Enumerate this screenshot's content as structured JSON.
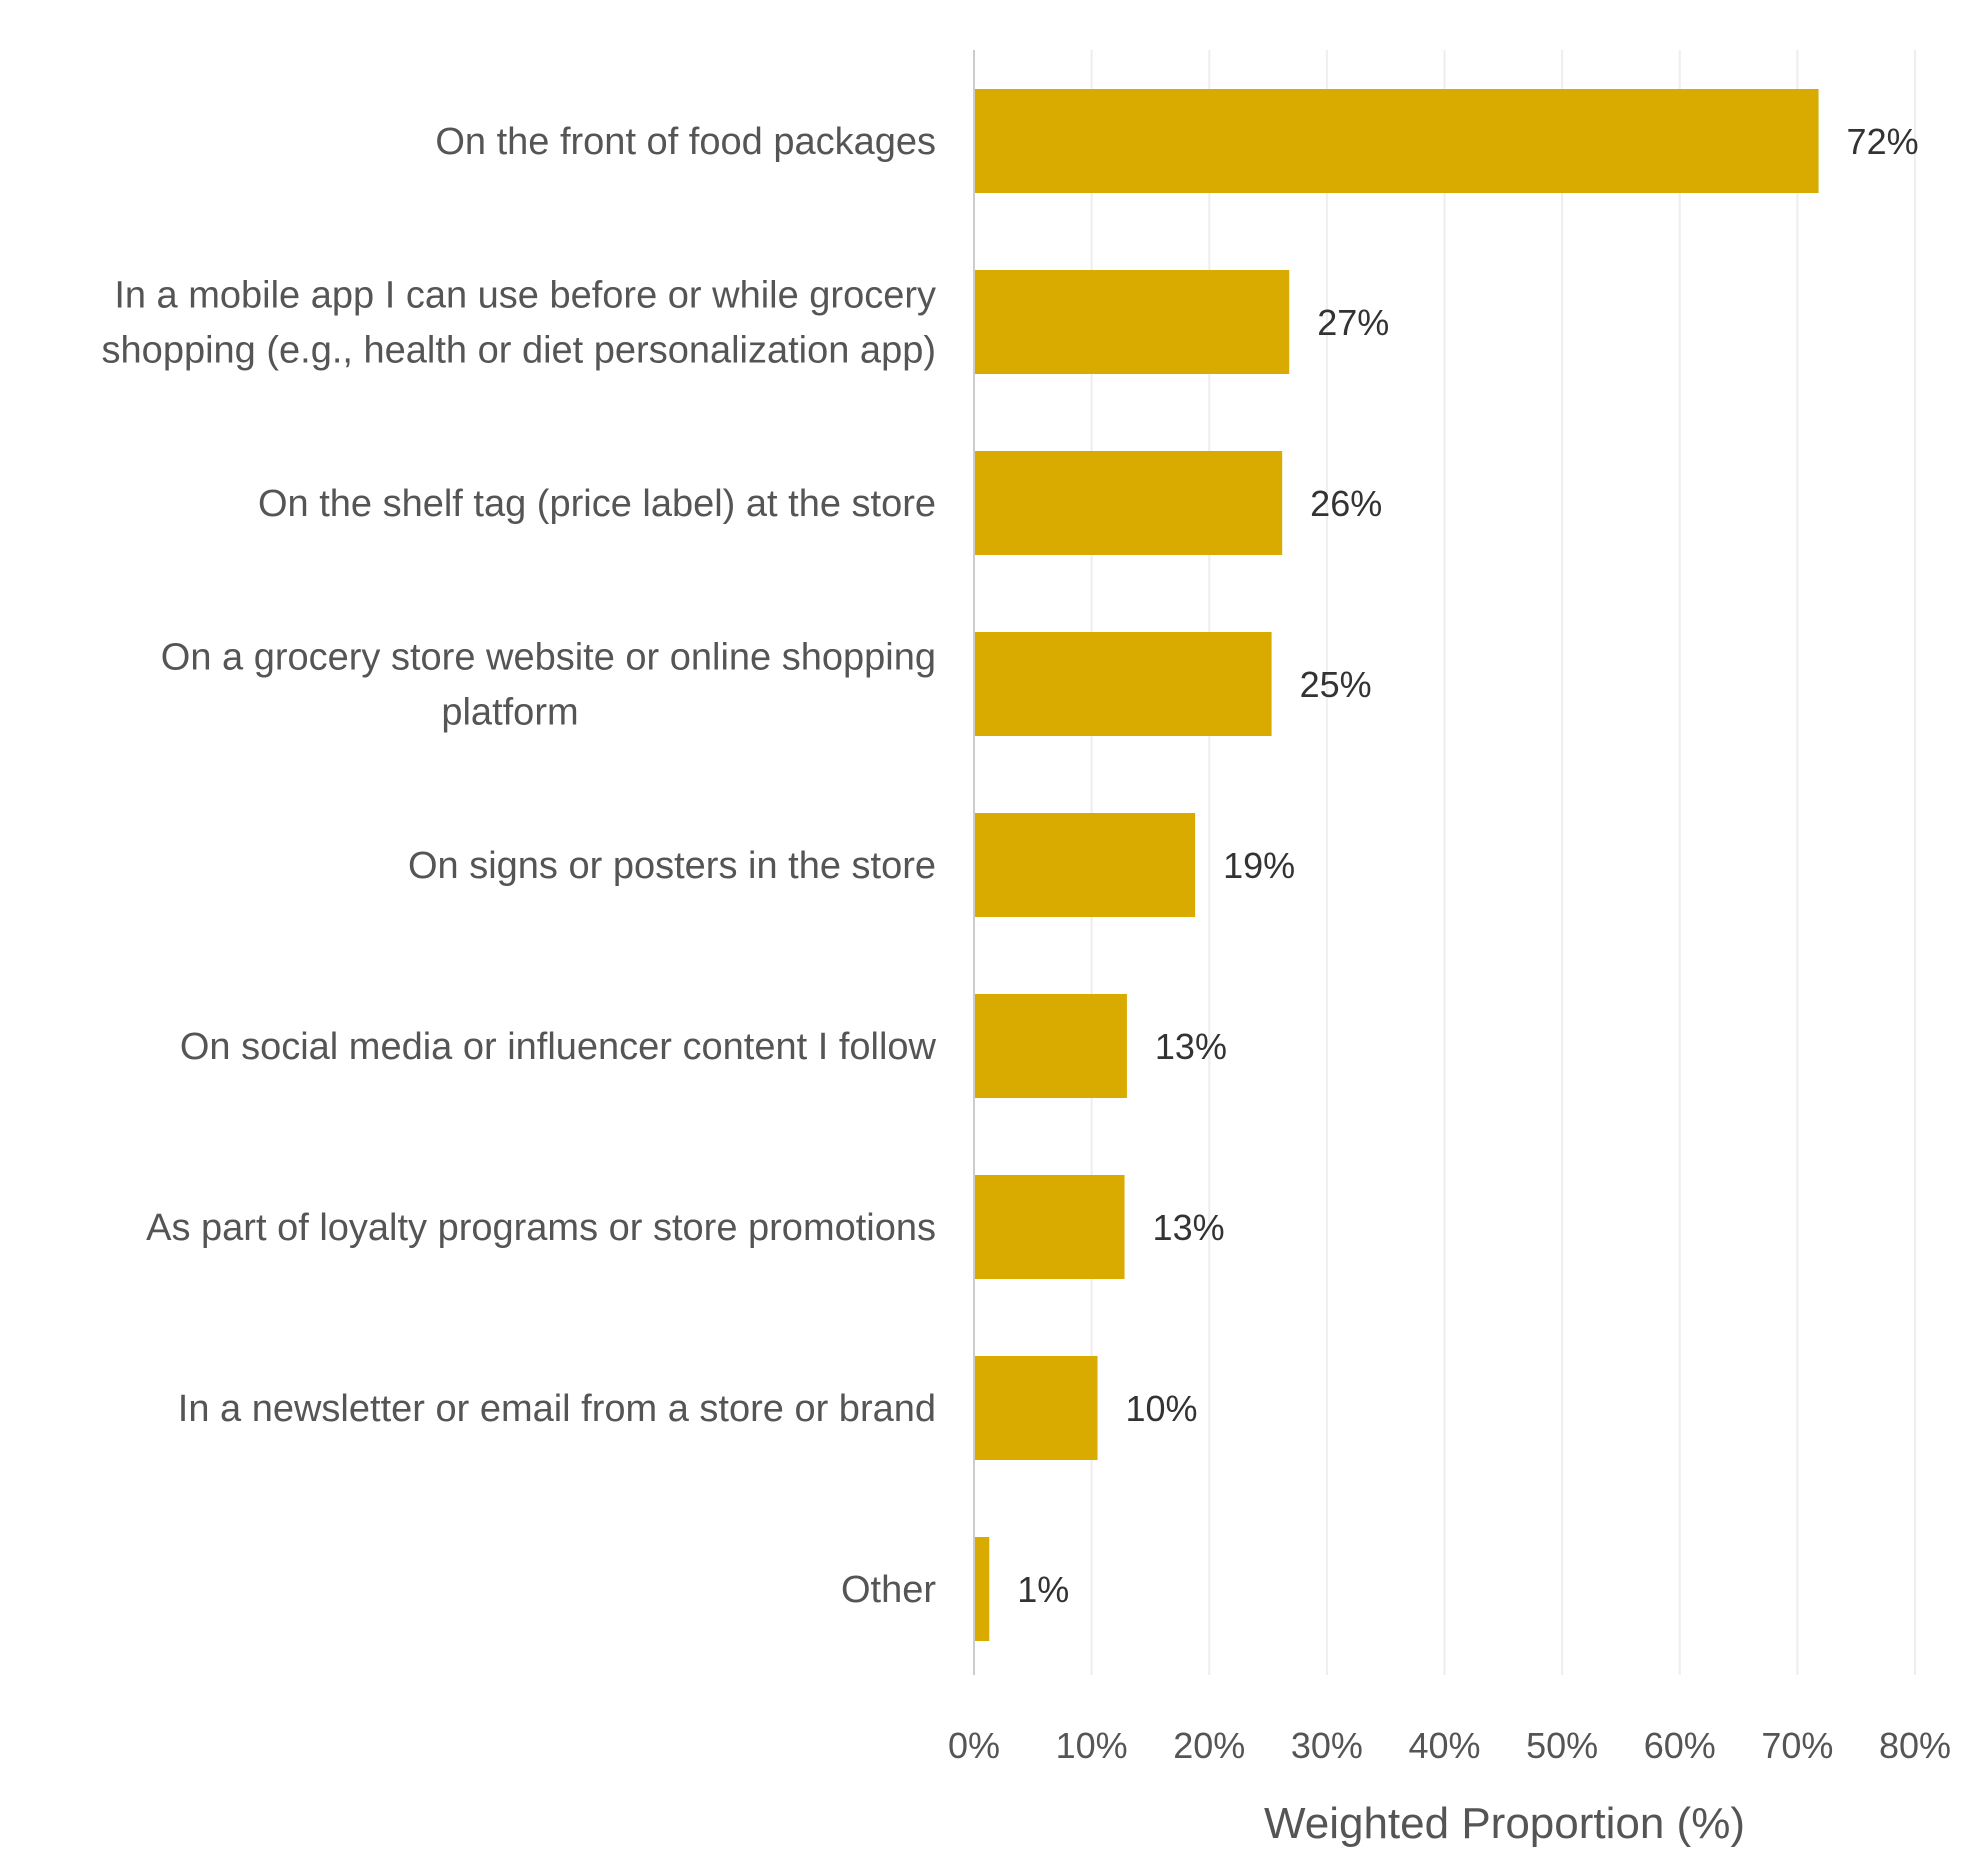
{
  "chart_data": {
    "type": "bar",
    "orientation": "horizontal",
    "categories": [
      [
        "On the front of food packages"
      ],
      [
        "In a mobile app I can use before or while grocery",
        "shopping (e.g., health or diet personalization app)"
      ],
      [
        "On the shelf tag (price label) at the store"
      ],
      [
        "On a grocery store website or online shopping",
        "platform"
      ],
      [
        "On signs or posters in the store"
      ],
      [
        "On social media or influencer content I follow"
      ],
      [
        "As part of loyalty programs or store promotions"
      ],
      [
        "In a newsletter or email from a store or brand"
      ],
      [
        "Other"
      ]
    ],
    "values": [
      71.8,
      26.8,
      26.2,
      25.3,
      18.8,
      13.0,
      12.8,
      10.5,
      1.3
    ],
    "value_labels": [
      "72%",
      "27%",
      "26%",
      "25%",
      "19%",
      "13%",
      "13%",
      "10%",
      "1%"
    ],
    "xlim": [
      0,
      80
    ],
    "xticks": [
      0,
      10,
      20,
      30,
      40,
      50,
      60,
      70,
      80
    ],
    "xtick_labels": [
      "0%",
      "10%",
      "20%",
      "30%",
      "40%",
      "50%",
      "60%",
      "70%",
      "80%"
    ],
    "xlabel": "Weighted Proportion (%)",
    "ylabel": "",
    "title": "",
    "grid": "vertical",
    "legend": "none",
    "bar_color": "#D9AA00"
  }
}
